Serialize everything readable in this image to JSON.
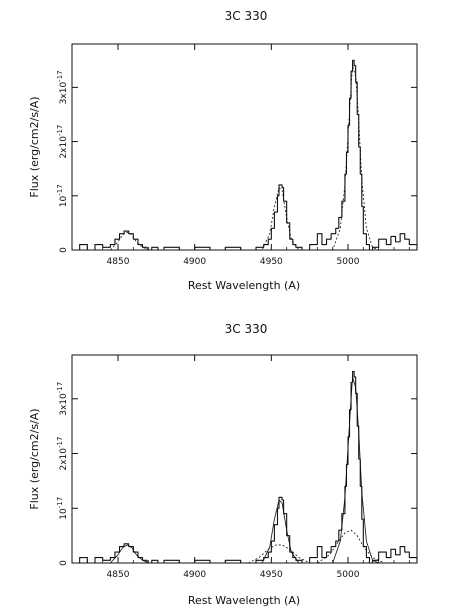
{
  "chart_data": [
    {
      "type": "line",
      "title": "3C 330",
      "xlabel": "Rest Wavelength (A)",
      "ylabel": "Flux (erg/cm2/s/A)",
      "xlim": [
        4820,
        5045
      ],
      "ylim": [
        0,
        3.8e-17
      ],
      "x_ticks": [
        {
          "value": 4850,
          "label": "4850"
        },
        {
          "value": 4900,
          "label": "4900"
        },
        {
          "value": 4950,
          "label": "4950"
        },
        {
          "value": 5000,
          "label": "5000"
        }
      ],
      "y_ticks": [
        {
          "value": 0,
          "base": "0",
          "exp": ""
        },
        {
          "value": 1e-17,
          "base": "10",
          "exp": "-17"
        },
        {
          "value": 2e-17,
          "base": "2x10",
          "exp": "-17"
        },
        {
          "value": 3e-17,
          "base": "3x10",
          "exp": "-17"
        }
      ],
      "series": [
        {
          "style": "step",
          "x": [
            4820,
            4825,
            4830,
            4835,
            4840,
            4845,
            4848,
            4851,
            4854,
            4857,
            4860,
            4863,
            4866,
            4869,
            4872,
            4876,
            4880,
            4890,
            4900,
            4910,
            4920,
            4930,
            4940,
            4945,
            4948,
            4950,
            4952,
            4954,
            4955,
            4957,
            4958,
            4960,
            4962,
            4964,
            4966,
            4970,
            4975,
            4980,
            4983,
            4986,
            4989,
            4992,
            4994,
            4996,
            4998,
            4999,
            5000,
            5001,
            5002,
            5003,
            5004,
            5005,
            5006,
            5007,
            5008,
            5009,
            5010,
            5012,
            5014,
            5016,
            5020,
            5025,
            5028,
            5031,
            5034,
            5037,
            5040,
            5045
          ],
          "y": [
            0.0,
            1e-18,
            0.0,
            1e-18,
            5e-19,
            1e-18,
            2e-18,
            3e-18,
            3.5e-18,
            3e-18,
            2e-18,
            1e-18,
            5e-19,
            0.0,
            5e-19,
            0.0,
            5e-19,
            0.0,
            5e-19,
            0.0,
            5e-19,
            0.0,
            5e-19,
            1e-18,
            2e-18,
            4e-18,
            7e-18,
            1e-17,
            1.2e-17,
            1.15e-17,
            9e-18,
            5e-18,
            2e-18,
            1e-18,
            5e-19,
            0.0,
            1e-18,
            3e-18,
            1e-18,
            2e-18,
            3e-18,
            4e-18,
            6e-18,
            9e-18,
            1.4e-17,
            1.8e-17,
            2.3e-17,
            2.8e-17,
            3.3e-17,
            3.5e-17,
            3.4e-17,
            3.1e-17,
            2.5e-17,
            1.9e-17,
            1.4e-17,
            8e-18,
            3e-18,
            1e-18,
            0.0,
            5e-19,
            2e-18,
            1e-18,
            2.5e-18,
            1.5e-18,
            3e-18,
            2e-18,
            1e-18,
            0.0
          ]
        },
        {
          "style": "dashed",
          "x": [
            4845,
            4850,
            4853,
            4856,
            4859,
            4862,
            4866,
            4870,
            4944,
            4949,
            4952,
            4955,
            4957,
            4960,
            4963,
            4968,
            4990,
            4995,
            4998,
            5000,
            5002,
            5003,
            5005,
            5007,
            5009,
            5012,
            5016,
            5020
          ],
          "y": [
            0.0,
            1.5e-18,
            2.8e-18,
            3.3e-18,
            2.8e-18,
            1.5e-18,
            5e-19,
            0.0,
            0.0,
            3e-18,
            8e-18,
            1.15e-17,
            1.1e-17,
            6e-18,
            2e-18,
            0.0,
            0.0,
            4e-18,
            1.2e-17,
            2.1e-17,
            3e-17,
            3.4e-17,
            3.2e-17,
            2.4e-17,
            1.3e-17,
            4e-18,
            5e-19,
            0.0
          ]
        }
      ]
    },
    {
      "type": "line",
      "title": "3C 330",
      "xlabel": "Rest Wavelength (A)",
      "ylabel": "Flux (erg/cm2/s/A)",
      "xlim": [
        4820,
        5045
      ],
      "ylim": [
        0,
        3.8e-17
      ],
      "x_ticks": [
        {
          "value": 4850,
          "label": "4850"
        },
        {
          "value": 4900,
          "label": "4900"
        },
        {
          "value": 4950,
          "label": "4950"
        },
        {
          "value": 5000,
          "label": "5000"
        }
      ],
      "y_ticks": [
        {
          "value": 0,
          "base": "0",
          "exp": ""
        },
        {
          "value": 1e-17,
          "base": "10",
          "exp": "-17"
        },
        {
          "value": 2e-17,
          "base": "2x10",
          "exp": "-17"
        },
        {
          "value": 3e-17,
          "base": "3x10",
          "exp": "-17"
        }
      ],
      "series": [
        {
          "style": "step",
          "x": [
            4820,
            4825,
            4830,
            4835,
            4840,
            4845,
            4848,
            4851,
            4854,
            4857,
            4860,
            4863,
            4866,
            4869,
            4872,
            4876,
            4880,
            4890,
            4900,
            4910,
            4920,
            4930,
            4940,
            4945,
            4948,
            4950,
            4952,
            4954,
            4955,
            4957,
            4958,
            4960,
            4962,
            4964,
            4966,
            4970,
            4975,
            4980,
            4983,
            4986,
            4989,
            4992,
            4994,
            4996,
            4998,
            4999,
            5000,
            5001,
            5002,
            5003,
            5004,
            5005,
            5006,
            5007,
            5008,
            5009,
            5010,
            5012,
            5014,
            5016,
            5020,
            5025,
            5028,
            5031,
            5034,
            5037,
            5040,
            5045
          ],
          "y": [
            0.0,
            1e-18,
            0.0,
            1e-18,
            5e-19,
            1e-18,
            2e-18,
            3e-18,
            3.5e-18,
            3e-18,
            2e-18,
            1e-18,
            5e-19,
            0.0,
            5e-19,
            0.0,
            5e-19,
            0.0,
            5e-19,
            0.0,
            5e-19,
            0.0,
            5e-19,
            1e-18,
            2e-18,
            4e-18,
            7e-18,
            1e-17,
            1.2e-17,
            1.15e-17,
            9e-18,
            5e-18,
            2e-18,
            1e-18,
            5e-19,
            0.0,
            1e-18,
            3e-18,
            1e-18,
            2e-18,
            3e-18,
            4e-18,
            6e-18,
            9e-18,
            1.4e-17,
            1.8e-17,
            2.3e-17,
            2.8e-17,
            3.3e-17,
            3.5e-17,
            3.4e-17,
            3.1e-17,
            2.5e-17,
            1.9e-17,
            1.4e-17,
            8e-18,
            3e-18,
            1e-18,
            0.0,
            5e-19,
            2e-18,
            1e-18,
            2.5e-18,
            1.5e-18,
            3e-18,
            2e-18,
            1e-18,
            0.0
          ]
        },
        {
          "style": "solid-smooth",
          "x": [
            4845,
            4850,
            4853,
            4856,
            4859,
            4862,
            4866,
            4870,
            4944,
            4949,
            4952,
            4955,
            4957,
            4960,
            4963,
            4968,
            4990,
            4995,
            4998,
            5000,
            5002,
            5003,
            5005,
            5007,
            5009,
            5012,
            5016,
            5020
          ],
          "y": [
            0.0,
            1.5e-18,
            2.8e-18,
            3.3e-18,
            2.8e-18,
            1.5e-18,
            5e-19,
            0.0,
            0.0,
            3e-18,
            8e-18,
            1.15e-17,
            1.1e-17,
            6e-18,
            2e-18,
            0.0,
            0.0,
            4e-18,
            1.2e-17,
            2.1e-17,
            3e-17,
            3.4e-17,
            3.2e-17,
            2.4e-17,
            1.3e-17,
            4e-18,
            5e-19,
            0.0
          ]
        },
        {
          "style": "dashed",
          "x": [
            4935,
            4942,
            4948,
            4953,
            4957,
            4962,
            4968,
            4975
          ],
          "y": [
            0.0,
            1e-18,
            2.5e-18,
            3.3e-18,
            3.3e-18,
            2.5e-18,
            1e-18,
            0.0
          ]
        },
        {
          "style": "dashed",
          "x": [
            4980,
            4988,
            4994,
            4998,
            5002,
            5006,
            5010,
            5016,
            5024
          ],
          "y": [
            0.0,
            1.5e-18,
            4e-18,
            5.5e-18,
            6e-18,
            5e-18,
            3e-18,
            1e-18,
            0.0
          ]
        }
      ]
    }
  ]
}
